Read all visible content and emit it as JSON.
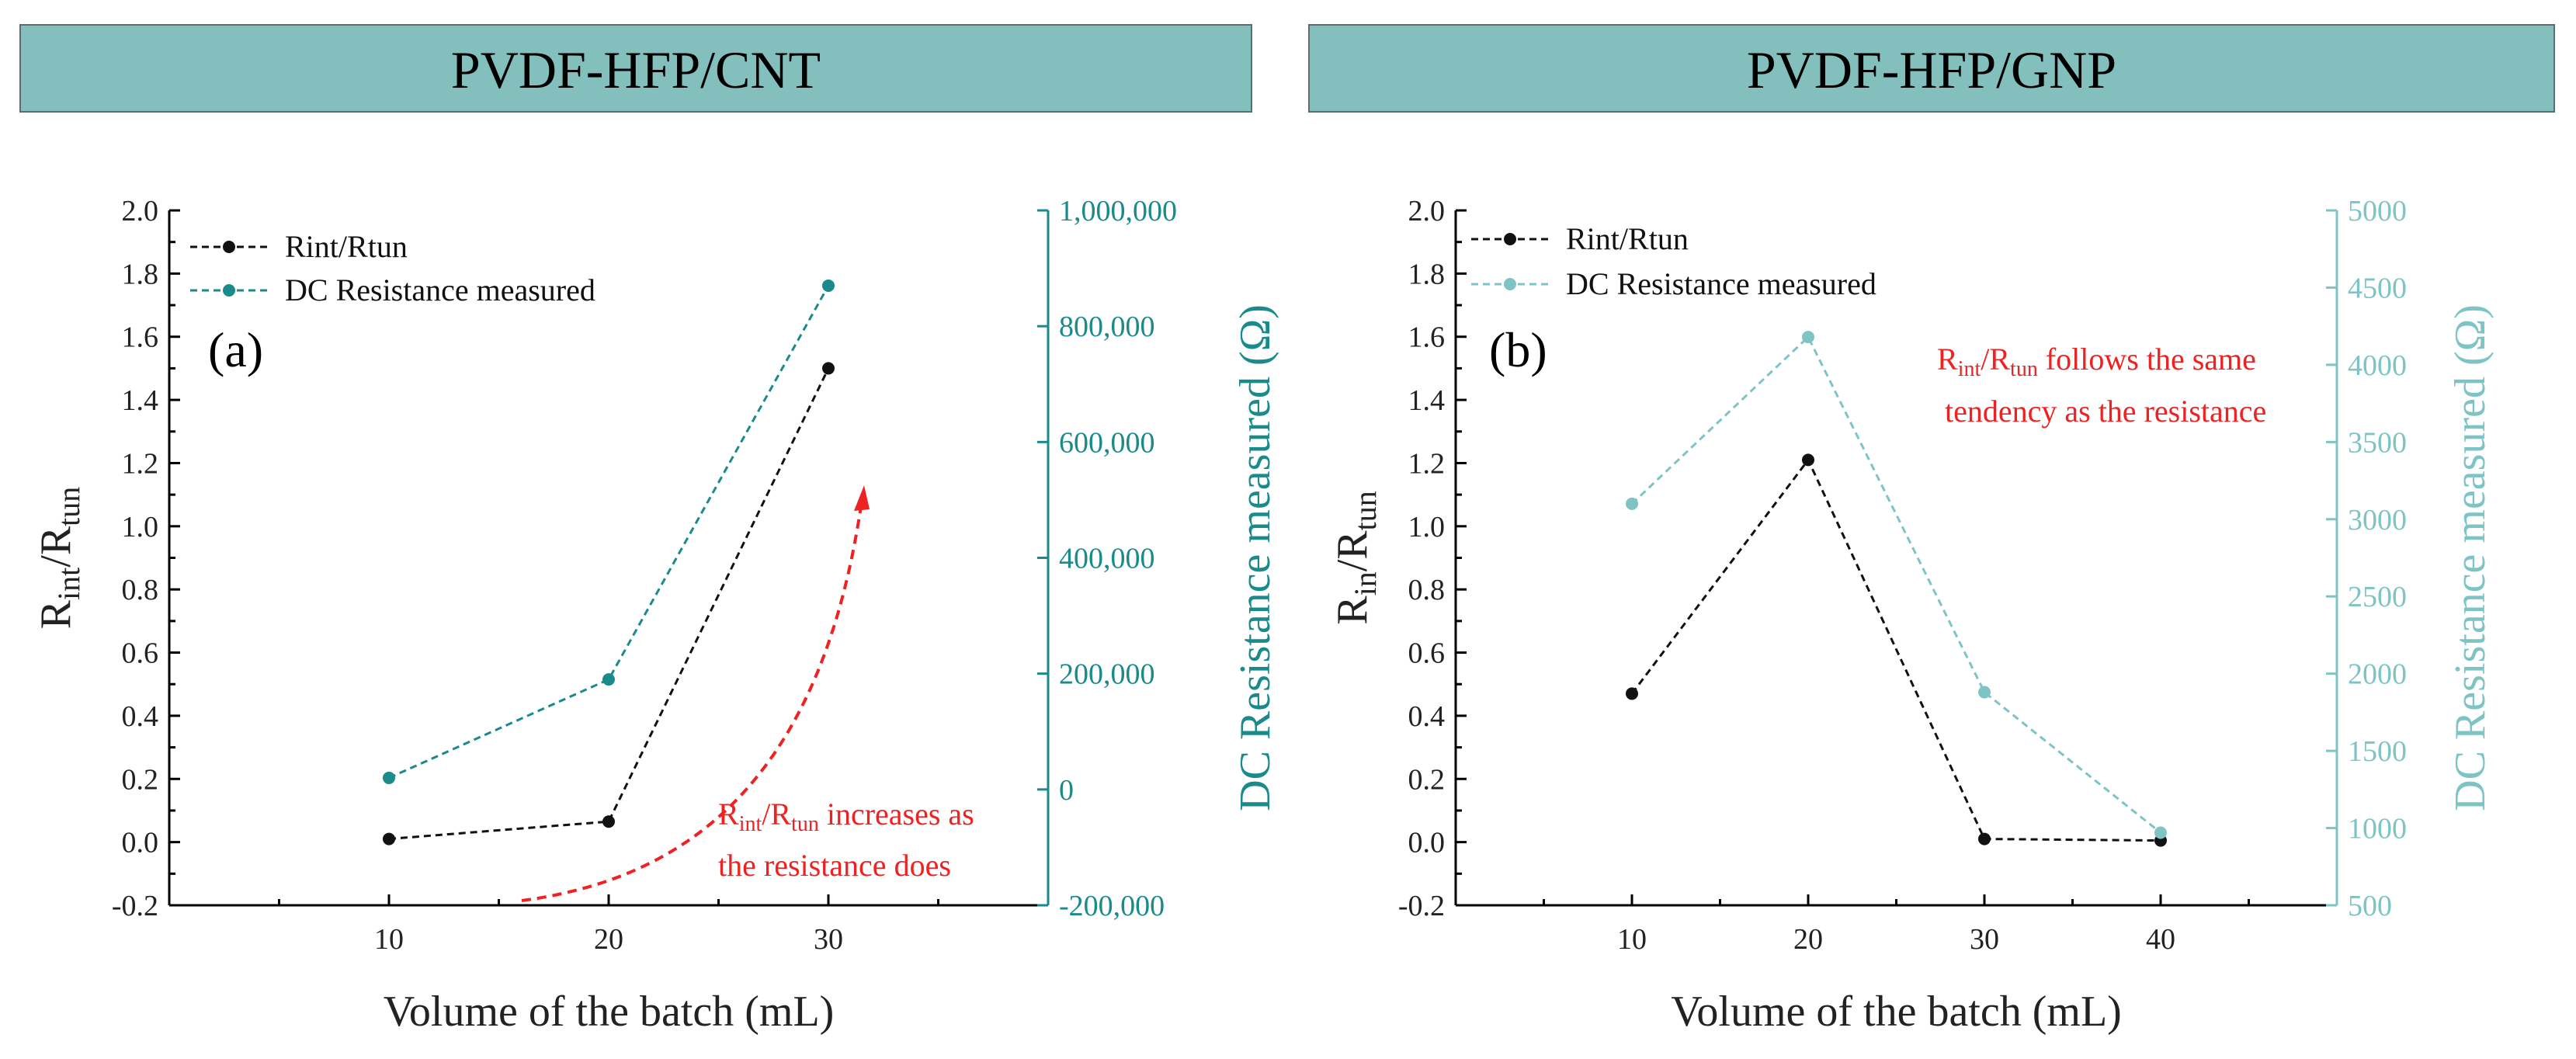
{
  "banners": {
    "left": "PVDF-HFP/CNT",
    "right": "PVDF-HFP/GNP"
  },
  "chart_data": [
    {
      "type": "line",
      "panel_label": "(a)",
      "xlabel": "Volume of the batch (mL)",
      "ylabel_main": "R",
      "ylabel_sub1": "int",
      "ylabel_slash": "/R",
      "ylabel_sub2": "tun",
      "y2label": "DC Resistance measured (Ω)",
      "xlim": [
        0,
        40
      ],
      "ylim": [
        -0.2,
        2.0
      ],
      "y2lim": [
        -200000,
        1000000
      ],
      "x_ticks": [
        10,
        20,
        30
      ],
      "y_ticks": [
        "-0.2",
        "0.0",
        "0.2",
        "0.4",
        "0.6",
        "0.8",
        "1.0",
        "1.2",
        "1.4",
        "1.6",
        "1.8",
        "2.0"
      ],
      "y2_ticks": [
        "-200,000",
        "0",
        "200,000",
        "400,000",
        "600,000",
        "800,000",
        "1,000,000"
      ],
      "y2_color": "#1a8a8a",
      "series": [
        {
          "name": "Rint/Rtun",
          "axis": "left",
          "color": "#111111",
          "x": [
            10,
            20,
            30
          ],
          "y": [
            0.01,
            0.065,
            1.5
          ]
        },
        {
          "name": "DC Resistance measured",
          "axis": "right",
          "color": "#1a8a8a",
          "x": [
            10,
            20,
            30
          ],
          "y": [
            20000,
            190000,
            870000
          ]
        }
      ],
      "annotation": {
        "line1_main": "R",
        "line1_sub1": "int",
        "line1_slash": "/R",
        "line1_sub2": "tun",
        "line1_rest": " increases as",
        "line2": "the resistance does",
        "color": "#ee2222"
      }
    },
    {
      "type": "line",
      "panel_label": "(b)",
      "xlabel": "Volume of the batch (mL)",
      "ylabel_main": "R",
      "ylabel_sub1": "in",
      "ylabel_slash": "/R",
      "ylabel_sub2": "tun",
      "y2label": "DC Resistance measured (Ω)",
      "xlim": [
        0,
        50
      ],
      "ylim": [
        -0.2,
        2.0
      ],
      "y2lim": [
        500,
        5000
      ],
      "x_ticks": [
        10,
        20,
        30,
        40
      ],
      "y_ticks": [
        "-0.2",
        "0.0",
        "0.2",
        "0.4",
        "0.6",
        "0.8",
        "1.0",
        "1.2",
        "1.4",
        "1.6",
        "1.8",
        "2.0"
      ],
      "y2_ticks": [
        "500",
        "1000",
        "1500",
        "2000",
        "2500",
        "3000",
        "3500",
        "4000",
        "4500",
        "5000"
      ],
      "y2_color": "#7fc4c4",
      "series": [
        {
          "name": "Rint/Rtun",
          "axis": "left",
          "color": "#111111",
          "x": [
            10,
            20,
            30,
            40
          ],
          "y": [
            0.47,
            1.21,
            0.01,
            0.005
          ]
        },
        {
          "name": "DC Resistance measured",
          "axis": "right",
          "color": "#7fc4c4",
          "x": [
            10,
            20,
            30,
            40
          ],
          "y": [
            3100,
            4180,
            1880,
            970
          ]
        }
      ],
      "annotation": {
        "line1_main": "R",
        "line1_sub1": "int",
        "line1_slash": "/R",
        "line1_sub2": "tun",
        "line1_rest": " follows the same",
        "line2": "tendency as the resistance",
        "color": "#ee2222"
      }
    }
  ]
}
